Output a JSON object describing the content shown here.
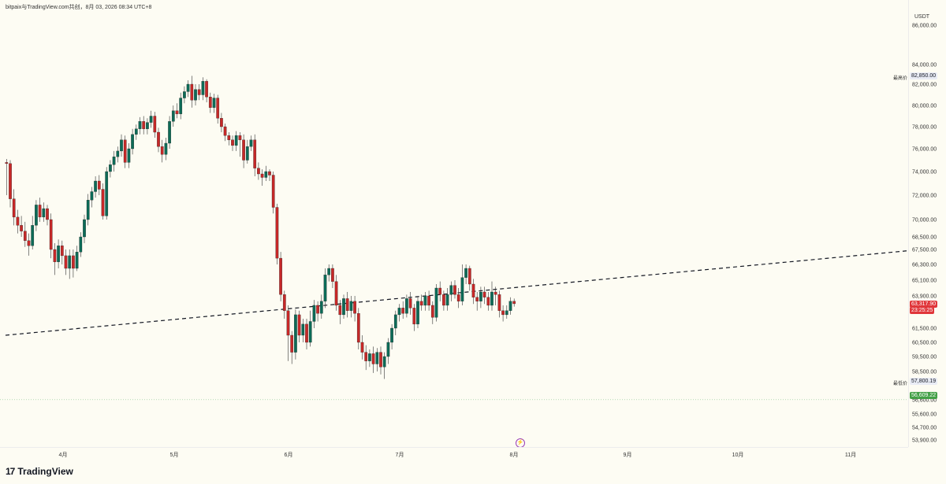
{
  "header": {
    "title": "bitpaix与TradingView.com共创，8月 03, 2026 08:34 UTC+8"
  },
  "axis": {
    "unit": "USDT",
    "price_ticks": [
      "86,000.00",
      "84,000.00",
      "82,000.00",
      "80,000.00",
      "78,000.00",
      "76,000.00",
      "74,000.00",
      "72,000.00",
      "70,000.00",
      "68,500.00",
      "67,500.00",
      "66,300.00",
      "65,100.00",
      "63,900.00",
      "61,500.00",
      "60,500.00",
      "59,500.00",
      "58,500.00",
      "56,600.00",
      "55,600.00",
      "54,700.00",
      "53,900.00"
    ],
    "time_ticks": [
      "4月",
      "5月",
      "6月",
      "7月",
      "8月",
      "9月",
      "10月",
      "11月"
    ]
  },
  "labels": {
    "high_label": "最高价",
    "high_value": "82,850.00",
    "low_label": "最低价",
    "low_value": "57,800.19",
    "current_price": "63,317.90",
    "countdown": "23:25:25",
    "green_tag": "56,609.22"
  },
  "colors": {
    "up": "#26a69a",
    "down": "#ef5350",
    "candle_up": "#0c6b57",
    "candle_down": "#c62828",
    "trend": "#131722",
    "tag_red": "#e0363a",
    "tag_green": "#43a047"
  },
  "footer": {
    "logo": "TradingView"
  },
  "chart_data": {
    "type": "candlestick",
    "title": "",
    "ylabel": "USDT",
    "y_ticks": [
      86000,
      84000,
      82000,
      80000,
      78000,
      76000,
      74000,
      72000,
      70000,
      68500,
      67500,
      66300,
      65100,
      63900,
      61500,
      60500,
      59500,
      58500,
      56600,
      55600,
      54700,
      53900
    ],
    "x_ticks": [
      "4月",
      "5月",
      "6月",
      "7月",
      "8月",
      "9月",
      "10月",
      "11月"
    ],
    "series": [
      {
        "candles": [
          [
            74800,
            74700,
            75100,
            72000
          ],
          [
            74700,
            71700,
            75000,
            71000
          ],
          [
            71700,
            70200,
            72500,
            69500
          ],
          [
            70200,
            69500,
            70800,
            68800
          ],
          [
            69500,
            69000,
            70300,
            68500
          ],
          [
            69000,
            68200,
            69800,
            67700
          ],
          [
            68200,
            67800,
            68800,
            67000
          ],
          [
            67800,
            69500,
            70300,
            67500
          ],
          [
            69500,
            71200,
            71600,
            69000
          ],
          [
            71200,
            70200,
            71800,
            69800
          ],
          [
            70200,
            70900,
            71400,
            69800
          ],
          [
            70900,
            70000,
            71200,
            69500
          ],
          [
            70000,
            67500,
            70500,
            66800
          ],
          [
            67500,
            66500,
            68000,
            65500
          ],
          [
            66500,
            67800,
            68300,
            66000
          ],
          [
            67800,
            67000,
            68200,
            66300
          ],
          [
            67000,
            66000,
            67500,
            65500
          ],
          [
            66000,
            67000,
            67500,
            65200
          ],
          [
            67000,
            66000,
            67500,
            65300
          ],
          [
            66000,
            67300,
            67800,
            65800
          ],
          [
            67300,
            68500,
            68900,
            66900
          ],
          [
            68500,
            70000,
            70400,
            68000
          ],
          [
            70000,
            71600,
            72100,
            69500
          ],
          [
            71600,
            72300,
            72700,
            71000
          ],
          [
            72300,
            73200,
            73600,
            71800
          ],
          [
            73200,
            72500,
            73700,
            72000
          ],
          [
            72500,
            70300,
            73000,
            70000
          ],
          [
            70300,
            74000,
            74400,
            70000
          ],
          [
            74000,
            74600,
            75000,
            73500
          ],
          [
            74600,
            75300,
            75800,
            74000
          ],
          [
            75300,
            75800,
            76200,
            74800
          ],
          [
            75800,
            76800,
            77300,
            75300
          ],
          [
            76800,
            74800,
            77200,
            74300
          ],
          [
            74800,
            76000,
            76500,
            74300
          ],
          [
            76000,
            77300,
            77800,
            75500
          ],
          [
            77300,
            77800,
            78200,
            76800
          ],
          [
            77800,
            78500,
            78900,
            77300
          ],
          [
            78500,
            77800,
            79000,
            77300
          ],
          [
            77800,
            78400,
            78800,
            77300
          ],
          [
            78400,
            79000,
            79500,
            77900
          ],
          [
            79000,
            77500,
            79400,
            77000
          ],
          [
            77500,
            76200,
            77900,
            75700
          ],
          [
            76200,
            75500,
            76800,
            74800
          ],
          [
            75500,
            76500,
            77000,
            75000
          ],
          [
            76500,
            78500,
            79000,
            76000
          ],
          [
            78500,
            79500,
            80000,
            78000
          ],
          [
            79500,
            79200,
            80200,
            78800
          ],
          [
            79200,
            80700,
            81200,
            78700
          ],
          [
            80700,
            81300,
            81800,
            80200
          ],
          [
            81300,
            82000,
            82400,
            80800
          ],
          [
            82000,
            80500,
            82850,
            79800
          ],
          [
            80500,
            81500,
            82000,
            80000
          ],
          [
            81500,
            81000,
            82000,
            80500
          ],
          [
            81000,
            82300,
            82700,
            80500
          ],
          [
            82300,
            80800,
            82500,
            80300
          ],
          [
            80800,
            79800,
            81200,
            79300
          ],
          [
            79800,
            80700,
            81100,
            79300
          ],
          [
            80700,
            78800,
            81000,
            78300
          ],
          [
            78800,
            78000,
            79300,
            77500
          ],
          [
            78000,
            77200,
            78300,
            76700
          ],
          [
            77200,
            76800,
            77500,
            76300
          ],
          [
            76800,
            76300,
            77200,
            75800
          ],
          [
            76300,
            77200,
            77600,
            75800
          ],
          [
            77200,
            76800,
            77500,
            75300
          ],
          [
            76800,
            75000,
            77300,
            74300
          ],
          [
            75000,
            76200,
            76800,
            74700
          ],
          [
            76200,
            76800,
            77200,
            75800
          ],
          [
            76800,
            74300,
            77300,
            73600
          ],
          [
            74300,
            73800,
            74800,
            73300
          ],
          [
            73800,
            73500,
            74200,
            72800
          ],
          [
            73500,
            74000,
            74500,
            73200
          ],
          [
            74000,
            73700,
            74200,
            73200
          ],
          [
            73700,
            71000,
            74000,
            70500
          ],
          [
            71000,
            66800,
            71300,
            66300
          ],
          [
            66800,
            64000,
            67300,
            63500
          ],
          [
            64000,
            62800,
            64300,
            62200
          ],
          [
            62800,
            61000,
            63200,
            59200
          ],
          [
            61000,
            59800,
            61300,
            59000
          ],
          [
            59800,
            62500,
            62900,
            59300
          ],
          [
            62500,
            61000,
            62800,
            60500
          ],
          [
            61000,
            61800,
            62200,
            60500
          ],
          [
            61800,
            60500,
            62200,
            60000
          ],
          [
            60500,
            62000,
            62800,
            60200
          ],
          [
            62000,
            63200,
            63600,
            61500
          ],
          [
            63200,
            62600,
            63500,
            62000
          ],
          [
            62600,
            63500,
            64000,
            62200
          ],
          [
            63500,
            65500,
            66000,
            63000
          ],
          [
            65500,
            66000,
            66300,
            65000
          ],
          [
            66000,
            65000,
            66300,
            64500
          ],
          [
            65000,
            63200,
            65500,
            62800
          ],
          [
            63200,
            62500,
            63600,
            61800
          ],
          [
            62500,
            63700,
            64000,
            62200
          ],
          [
            63700,
            62800,
            64200,
            62300
          ],
          [
            62800,
            63500,
            63900,
            62300
          ],
          [
            63500,
            62600,
            63900,
            62000
          ],
          [
            62600,
            60500,
            63000,
            60000
          ],
          [
            60500,
            59800,
            61000,
            59300
          ],
          [
            59800,
            59200,
            60300,
            58600
          ],
          [
            59200,
            59700,
            60000,
            58800
          ],
          [
            59700,
            59000,
            60200,
            58400
          ],
          [
            59000,
            59800,
            60100,
            58500
          ],
          [
            59800,
            58800,
            60200,
            58300
          ],
          [
            58800,
            59500,
            59800,
            58000
          ],
          [
            59500,
            60500,
            60800,
            59000
          ],
          [
            60500,
            61500,
            61800,
            60000
          ],
          [
            61500,
            62500,
            62800,
            61000
          ],
          [
            62500,
            63000,
            63300,
            62000
          ],
          [
            63000,
            62600,
            63500,
            62200
          ],
          [
            62600,
            63700,
            64000,
            62300
          ],
          [
            63700,
            63000,
            64200,
            62500
          ],
          [
            63000,
            61800,
            63300,
            61300
          ],
          [
            61800,
            63500,
            63800,
            61500
          ],
          [
            63500,
            63200,
            64000,
            62800
          ],
          [
            63200,
            63900,
            64200,
            62800
          ],
          [
            63900,
            63200,
            64300,
            62800
          ],
          [
            63200,
            62300,
            63500,
            61800
          ],
          [
            62300,
            64500,
            64800,
            62000
          ],
          [
            64500,
            64000,
            65000,
            63500
          ],
          [
            64000,
            63200,
            64300,
            62800
          ],
          [
            63200,
            64000,
            64500,
            62800
          ],
          [
            64000,
            64700,
            65000,
            63500
          ],
          [
            64700,
            64000,
            65100,
            63700
          ],
          [
            64000,
            63500,
            64500,
            63000
          ],
          [
            63500,
            65300,
            66300,
            63200
          ],
          [
            65300,
            66000,
            66300,
            64800
          ],
          [
            66000,
            64800,
            66200,
            64300
          ],
          [
            64800,
            63800,
            65200,
            63300
          ],
          [
            63800,
            63500,
            64200,
            62800
          ],
          [
            63500,
            64200,
            64600,
            63000
          ],
          [
            64200,
            63800,
            64600,
            63300
          ],
          [
            63800,
            63200,
            64200,
            62800
          ],
          [
            63200,
            64200,
            65000,
            62800
          ],
          [
            64200,
            64000,
            64600,
            63200
          ],
          [
            64000,
            62800,
            64300,
            62300
          ],
          [
            62800,
            62500,
            63200,
            62000
          ],
          [
            62500,
            62800,
            63200,
            62200
          ],
          [
            62800,
            63500,
            63800,
            62500
          ],
          [
            63500,
            63318,
            63700,
            63100
          ]
        ]
      }
    ],
    "trendline": {
      "from": {
        "x": "3月下旬",
        "y": 61000
      },
      "to": {
        "x": "11月",
        "y": 67400
      }
    }
  }
}
